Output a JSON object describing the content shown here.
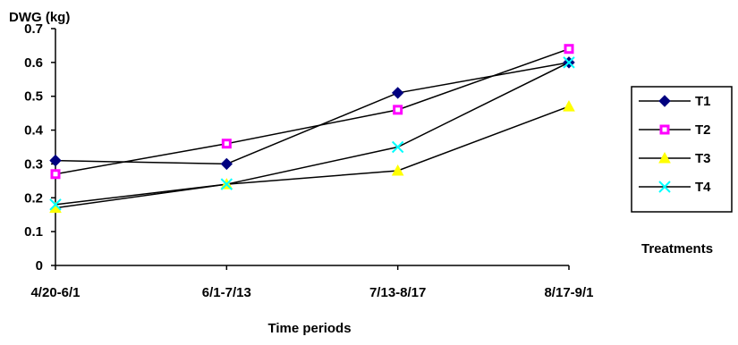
{
  "chart_data": {
    "type": "line",
    "ylabel": "DWG (kg)",
    "xlabel": "Time periods",
    "legend_title": "Treatments",
    "legend_position": "right",
    "grid": false,
    "ylim": [
      0,
      0.7
    ],
    "yticks": [
      "0",
      "0.1",
      "0.2",
      "0.3",
      "0.4",
      "0.5",
      "0.6",
      "0.7"
    ],
    "categories": [
      "4/20-6/1",
      "6/1-7/13",
      "7/13-8/17",
      "8/17-9/1"
    ],
    "series": [
      {
        "name": "T1",
        "values": [
          0.31,
          0.3,
          0.51,
          0.6
        ],
        "color": "#000080",
        "marker": "diamond"
      },
      {
        "name": "T2",
        "values": [
          0.27,
          0.36,
          0.46,
          0.64
        ],
        "color": "#FF00FF",
        "marker": "square"
      },
      {
        "name": "T3",
        "values": [
          0.17,
          0.24,
          0.28,
          0.47
        ],
        "color": "#FFFF00",
        "marker": "triangle"
      },
      {
        "name": "T4",
        "values": [
          0.18,
          0.24,
          0.35,
          0.6
        ],
        "color": "#00FFFF",
        "marker": "x"
      }
    ]
  }
}
